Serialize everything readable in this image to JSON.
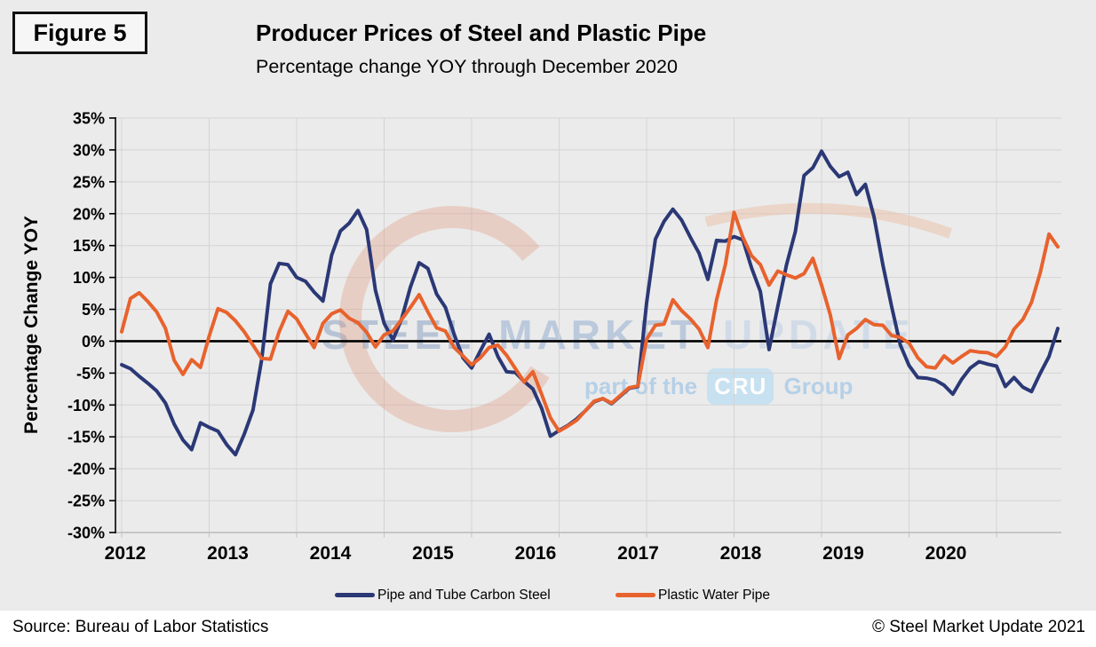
{
  "figure_label": "Figure 5",
  "title": "Producer Prices of Steel and Plastic Pipe",
  "subtitle": "Percentage change YOY through December 2020",
  "source": "Source: Bureau of Labor Statistics",
  "copyright": "© Steel Market Update 2021",
  "watermark": {
    "word1": "STEEL",
    "word2": "MARKET",
    "word3": "UPDATE",
    "part_prefix": "part of the",
    "cru": "CRU",
    "group": "Group"
  },
  "colors": {
    "background": "#ebebeb",
    "gridline": "#d4d4d4",
    "axis": "#000000",
    "zero_line": "#000000",
    "steel_blue": "#2b3876",
    "plastic_orange": "#e8622d",
    "watermark_swoosh": "#e09579"
  },
  "chart_data": {
    "type": "line",
    "title": "Producer Prices of Steel and Plastic Pipe",
    "subtitle": "Percentage change YOY through December 2020",
    "ylabel": "Percentage Change YOY",
    "xlabel": "",
    "ylim": [
      -30,
      35
    ],
    "ytick_step": 5,
    "ytick_labels": [
      "35%",
      "30%",
      "25%",
      "20%",
      "15%",
      "10%",
      "5%",
      "0%",
      "-5%",
      "-10%",
      "-15%",
      "-20%",
      "-25%",
      "-30%"
    ],
    "x_labels": [
      "2012",
      "2013",
      "2014",
      "2015",
      "2016",
      "2017",
      "2018",
      "2019",
      "2020"
    ],
    "x_unit": "monthly, Jan 2012 - Dec 2020",
    "grid": true,
    "legend_position": "bottom",
    "series": [
      {
        "name": "Pipe and Tube Carbon Steel",
        "color": "#2b3876",
        "values": [
          -3.7,
          -4.3,
          -5.5,
          -6.6,
          -7.8,
          -9.7,
          -13.0,
          -15.5,
          -17.0,
          -12.8,
          -13.5,
          -14.1,
          -16.2,
          -17.8,
          -14.6,
          -10.8,
          -2.9,
          9.0,
          12.2,
          12.0,
          10.0,
          9.4,
          7.7,
          6.3,
          13.5,
          17.3,
          18.5,
          20.5,
          17.5,
          8.0,
          2.8,
          0.2,
          3.5,
          8.5,
          12.3,
          11.4,
          7.4,
          5.3,
          1.1,
          -2.6,
          -4.2,
          -1.5,
          1.1,
          -2.4,
          -4.8,
          -4.9,
          -6.3,
          -7.5,
          -10.5,
          -14.9,
          -14.0,
          -13.2,
          -12.2,
          -10.9,
          -9.5,
          -9.0,
          -9.8,
          -8.6,
          -7.4,
          -7.1,
          6.0,
          16.0,
          18.8,
          20.7,
          19.0,
          16.3,
          13.8,
          9.7,
          15.8,
          15.7,
          16.4,
          15.9,
          11.5,
          7.8,
          -1.3,
          5.5,
          12.0,
          17.2,
          26.0,
          27.2,
          29.8,
          27.4,
          25.8,
          26.5,
          23.0,
          24.6,
          19.5,
          12.0,
          5.5,
          -0.6,
          -3.8,
          -5.7,
          -5.8,
          -6.1,
          -6.9,
          -8.3,
          -6.0,
          -4.2,
          -3.2,
          -3.6,
          -3.9,
          -7.1,
          -5.7,
          -7.2,
          -7.9,
          -5.0,
          -2.4,
          2.0
        ]
      },
      {
        "name": "Plastic Water Pipe",
        "color": "#e8622d",
        "values": [
          1.5,
          6.7,
          7.6,
          6.2,
          4.6,
          2.0,
          -3.0,
          -5.2,
          -2.9,
          -4.1,
          0.8,
          5.1,
          4.5,
          3.2,
          1.5,
          -0.6,
          -2.7,
          -2.8,
          1.5,
          4.7,
          3.5,
          1.2,
          -1.0,
          2.8,
          4.3,
          4.9,
          3.6,
          2.9,
          1.4,
          -0.9,
          1.0,
          1.6,
          3.4,
          5.3,
          7.3,
          4.6,
          2.1,
          1.6,
          -1.0,
          -2.3,
          -3.7,
          -2.6,
          -1.0,
          -0.6,
          -2.2,
          -4.3,
          -6.4,
          -4.8,
          -8.3,
          -12.0,
          -14.1,
          -13.3,
          -12.4,
          -10.9,
          -9.4,
          -9.0,
          -9.7,
          -8.5,
          -7.3,
          -7.0,
          0.3,
          2.5,
          2.7,
          6.5,
          4.8,
          3.5,
          1.9,
          -1.0,
          6.5,
          12.0,
          20.2,
          16.3,
          13.4,
          12.0,
          8.8,
          11.0,
          10.4,
          9.9,
          10.6,
          13.0,
          8.8,
          4.1,
          -2.7,
          1.0,
          2.0,
          3.4,
          2.6,
          2.5,
          0.9,
          0.6,
          -0.3,
          -2.6,
          -4.0,
          -4.2,
          -2.3,
          -3.4,
          -2.4,
          -1.5,
          -1.7,
          -1.8,
          -2.4,
          -0.9,
          1.9,
          3.4,
          6.1,
          10.8,
          16.8,
          14.8
        ]
      }
    ]
  }
}
